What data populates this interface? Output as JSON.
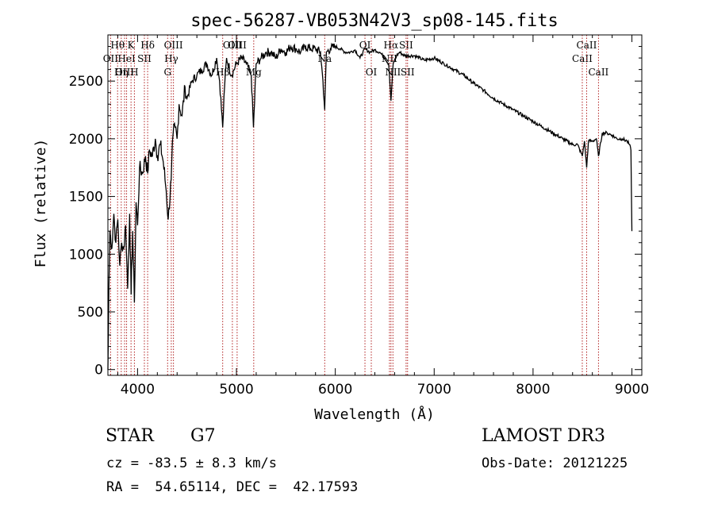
{
  "chart_data": {
    "type": "line",
    "title": "spec-56287-VB053N42V3_sp08-145.fits",
    "xlabel": "Wavelength (Å)",
    "ylabel": "Flux (relative)",
    "xlim": [
      3700,
      9100
    ],
    "ylim": [
      -50,
      2900
    ],
    "xticks": [
      4000,
      5000,
      6000,
      7000,
      8000,
      9000
    ],
    "yticks": [
      0,
      500,
      1000,
      1500,
      2000,
      2500
    ],
    "grid": false,
    "series": [
      {
        "name": "spectrum",
        "x": [
          3700,
          3705,
          3710,
          3720,
          3740,
          3760,
          3780,
          3800,
          3820,
          3840,
          3860,
          3880,
          3900,
          3920,
          3935,
          3950,
          3968,
          3985,
          4000,
          4020,
          4050,
          4080,
          4102,
          4120,
          4150,
          4180,
          4200,
          4230,
          4260,
          4290,
          4310,
          4340,
          4360,
          4380,
          4400,
          4420,
          4450,
          4480,
          4500,
          4550,
          4600,
          4650,
          4700,
          4750,
          4800,
          4830,
          4861,
          4880,
          4900,
          4950,
          5000,
          5050,
          5100,
          5150,
          5172,
          5200,
          5250,
          5300,
          5350,
          5400,
          5450,
          5500,
          5550,
          5600,
          5650,
          5700,
          5750,
          5800,
          5850,
          5875,
          5893,
          5910,
          5950,
          6000,
          6050,
          6100,
          6150,
          6200,
          6250,
          6300,
          6350,
          6400,
          6450,
          6500,
          6540,
          6563,
          6585,
          6620,
          6650,
          6700,
          6800,
          6900,
          7000,
          7100,
          7200,
          7300,
          7400,
          7500,
          7600,
          7700,
          7800,
          7900,
          8000,
          8100,
          8200,
          8300,
          8400,
          8450,
          8498,
          8520,
          8542,
          8560,
          8600,
          8640,
          8662,
          8700,
          8750,
          8800,
          8850,
          8900,
          8950,
          8975,
          8990,
          9000
        ],
        "values": [
          0,
          300,
          700,
          1200,
          1050,
          1350,
          1100,
          1300,
          900,
          1100,
          1050,
          1250,
          700,
          1350,
          650,
          1200,
          580,
          1450,
          1250,
          1750,
          1700,
          1850,
          1700,
          1900,
          1850,
          2000,
          1850,
          1950,
          1800,
          1550,
          1300,
          1650,
          2050,
          2100,
          2000,
          2300,
          2200,
          2450,
          2350,
          2500,
          2550,
          2600,
          2650,
          2550,
          2700,
          2500,
          2100,
          2450,
          2700,
          2550,
          2650,
          2700,
          2650,
          2550,
          2100,
          2650,
          2700,
          2750,
          2750,
          2700,
          2780,
          2750,
          2800,
          2780,
          2750,
          2800,
          2780,
          2780,
          2750,
          2500,
          2250,
          2750,
          2780,
          2800,
          2780,
          2750,
          2750,
          2770,
          2700,
          2780,
          2750,
          2770,
          2750,
          2700,
          2650,
          2330,
          2650,
          2720,
          2750,
          2720,
          2720,
          2680,
          2700,
          2650,
          2600,
          2550,
          2480,
          2420,
          2350,
          2300,
          2250,
          2200,
          2150,
          2100,
          2050,
          2000,
          1950,
          1950,
          1850,
          1980,
          1750,
          1980,
          1980,
          2000,
          1850,
          2050,
          2050,
          2030,
          2000,
          2000,
          1980,
          1950,
          1900,
          1200
        ]
      }
    ],
    "line_markers": [
      {
        "label": "Hθ",
        "wavelength": 3798,
        "row": 1
      },
      {
        "label": "OII",
        "wavelength": 3727,
        "row": 2
      },
      {
        "label": "Hη",
        "wavelength": 3835,
        "row": 3
      },
      {
        "label": "OIII",
        "wavelength": 3869,
        "row": 3
      },
      {
        "label": "HeI",
        "wavelength": 3889,
        "row": 2
      },
      {
        "label": "K",
        "wavelength": 3934,
        "row": 1
      },
      {
        "label": "H",
        "wavelength": 3968,
        "row": 3
      },
      {
        "label": "SII",
        "wavelength": 4069,
        "row": 2
      },
      {
        "label": "Hδ",
        "wavelength": 4102,
        "row": 1
      },
      {
        "label": "OIII",
        "wavelength": 4363,
        "row": 1
      },
      {
        "label": "Hγ",
        "wavelength": 4341,
        "row": 2
      },
      {
        "label": "G",
        "wavelength": 4304,
        "row": 3
      },
      {
        "label": "Hβ",
        "wavelength": 4861,
        "row": 3
      },
      {
        "label": "OIII",
        "wavelength": 4959,
        "row": 1
      },
      {
        "label": "OIII",
        "wavelength": 5007,
        "row": 1
      },
      {
        "label": "Mg",
        "wavelength": 5175,
        "row": 3
      },
      {
        "label": "Na",
        "wavelength": 5893,
        "row": 2
      },
      {
        "label": "OI",
        "wavelength": 6300,
        "row": 1
      },
      {
        "label": "OI",
        "wavelength": 6364,
        "row": 3
      },
      {
        "label": "NII",
        "wavelength": 6548,
        "row": 2
      },
      {
        "label": "Hα",
        "wavelength": 6563,
        "row": 1
      },
      {
        "label": "NII",
        "wavelength": 6583,
        "row": 3
      },
      {
        "label": "SII",
        "wavelength": 6716,
        "row": 1
      },
      {
        "label": "SII",
        "wavelength": 6731,
        "row": 3
      },
      {
        "label": "CaII",
        "wavelength": 8498,
        "row": 2
      },
      {
        "label": "CaII",
        "wavelength": 8542,
        "row": 1
      },
      {
        "label": "CaII",
        "wavelength": 8662,
        "row": 3
      }
    ],
    "marker_color": "#b22222"
  },
  "info": {
    "object_class": "STAR",
    "subclass": "G7",
    "survey": "LAMOST DR3",
    "cz": "cz = -83.5 ± 8.3 km/s",
    "obs_date": "Obs-Date: 20121225",
    "radec": "RA =  54.65114, DEC =  42.17593"
  }
}
